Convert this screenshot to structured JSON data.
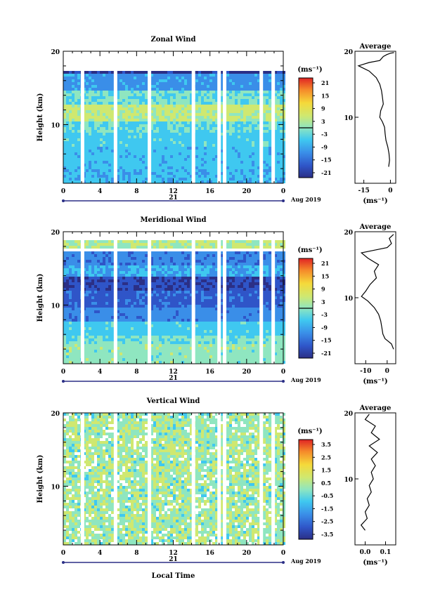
{
  "chart_data": [
    {
      "type": "heatmap",
      "title": "Zonal Wind",
      "ylabel": "Height (km)",
      "xlabel": "",
      "ylim": [
        2,
        20
      ],
      "xlim": [
        0,
        24
      ],
      "y_ticks": [
        "10",
        "20"
      ],
      "x_ticks": [
        "0",
        "4",
        "8",
        "12",
        "16",
        "20",
        "0"
      ],
      "date_label": "21",
      "date_suffix": "Aug 2019",
      "colorbar": {
        "unit": "(ms⁻¹)",
        "ticks": [
          "21",
          "15",
          "9",
          "3",
          "-3",
          "-9",
          "-15",
          "-21"
        ],
        "min": -24,
        "max": 24,
        "zero_line": true
      },
      "average": {
        "title": "Average",
        "xlabel": "(ms⁻¹)",
        "x_ticks": [
          "-15",
          "0"
        ],
        "y_ticks": [
          "10",
          "20"
        ],
        "xlim": [
          -20,
          3
        ],
        "profile": [
          [
            -1,
            2.5
          ],
          [
            -0.5,
            3.5
          ],
          [
            -0.8,
            4.5
          ],
          [
            -1.5,
            5.5
          ],
          [
            -2.5,
            6.5
          ],
          [
            -3,
            7.5
          ],
          [
            -3.3,
            8.5
          ],
          [
            -4.5,
            9.3
          ],
          [
            -6,
            10
          ],
          [
            -5.5,
            11
          ],
          [
            -4,
            12
          ],
          [
            -4.5,
            13
          ],
          [
            -5,
            14
          ],
          [
            -6,
            15
          ],
          [
            -8,
            16
          ],
          [
            -12,
            17
          ],
          [
            -18,
            17.8
          ],
          [
            -12,
            18.3
          ],
          [
            -6,
            18.6
          ],
          [
            -4,
            19.2
          ],
          [
            -2,
            19.5
          ],
          [
            0,
            19.7
          ],
          [
            2,
            19.8
          ]
        ]
      },
      "gap_hours": [
        2.1,
        5.7,
        9.4,
        14.2,
        17.0,
        17.6,
        21.6,
        22.9
      ],
      "layers": [
        {
          "y0": 2,
          "y1": 4,
          "value": -7
        },
        {
          "y0": 4,
          "y1": 7,
          "value": -6
        },
        {
          "y0": 7,
          "y1": 9,
          "value": -5
        },
        {
          "y0": 9,
          "y1": 10.5,
          "value": -3
        },
        {
          "y0": 10.5,
          "y1": 12,
          "value": 3
        },
        {
          "y0": 12,
          "y1": 13,
          "value": 5
        },
        {
          "y0": 13,
          "y1": 15,
          "value": -2
        },
        {
          "y0": 15,
          "y1": 17,
          "value": -10
        },
        {
          "y0": 17,
          "y1": 17.6,
          "value": -20
        }
      ]
    },
    {
      "type": "heatmap",
      "title": "Meridional Wind",
      "ylabel": "Height (km)",
      "xlabel": "",
      "ylim": [
        2,
        20
      ],
      "xlim": [
        0,
        24
      ],
      "y_ticks": [
        "10",
        "20"
      ],
      "x_ticks": [
        "0",
        "4",
        "8",
        "12",
        "16",
        "20",
        "0"
      ],
      "date_label": "21",
      "date_suffix": "Aug 2019",
      "colorbar": {
        "unit": "(ms⁻¹)",
        "ticks": [
          "21",
          "15",
          "9",
          "3",
          "-3",
          "-9",
          "-15",
          "-21"
        ],
        "min": -24,
        "max": 24,
        "zero_line": true
      },
      "average": {
        "title": "Average",
        "xlabel": "(ms⁻¹)",
        "x_ticks": [
          "-10",
          "0"
        ],
        "y_ticks": [
          "10",
          "20"
        ],
        "xlim": [
          -15,
          4
        ],
        "profile": [
          [
            3,
            2.2
          ],
          [
            2,
            3
          ],
          [
            -1,
            3.8
          ],
          [
            -2,
            4.5
          ],
          [
            -2.5,
            5.5
          ],
          [
            -3,
            6.5
          ],
          [
            -4,
            7.5
          ],
          [
            -6,
            8.5
          ],
          [
            -9,
            9.5
          ],
          [
            -12,
            10.2
          ],
          [
            -10,
            11
          ],
          [
            -8,
            12
          ],
          [
            -5,
            13
          ],
          [
            -6,
            14
          ],
          [
            -4,
            15
          ],
          [
            -9,
            16
          ],
          [
            -12,
            16.8
          ],
          [
            -6,
            17.2
          ],
          [
            0,
            17.6
          ],
          [
            2,
            18.2
          ],
          [
            1,
            19
          ],
          [
            3,
            19.6
          ]
        ]
      },
      "gap_hours": [
        2.1,
        5.7,
        9.4,
        14.2,
        17.0,
        17.6,
        21.6,
        22.9
      ],
      "layers": [
        {
          "y0": 2,
          "y1": 4,
          "value": 0
        },
        {
          "y0": 4,
          "y1": 5,
          "value": 1
        },
        {
          "y0": 5,
          "y1": 6,
          "value": -2
        },
        {
          "y0": 6,
          "y1": 8,
          "value": -5
        },
        {
          "y0": 8,
          "y1": 10,
          "value": -11
        },
        {
          "y0": 10,
          "y1": 12,
          "value": -15
        },
        {
          "y0": 12,
          "y1": 14,
          "value": -18
        },
        {
          "y0": 14,
          "y1": 15.5,
          "value": -8
        },
        {
          "y0": 15.5,
          "y1": 17.5,
          "value": -12
        },
        {
          "y0": 18,
          "y1": 19,
          "value": 3
        }
      ]
    },
    {
      "type": "heatmap",
      "title": "Vertical Wind",
      "ylabel": "Height (km)",
      "xlabel": "Local Time",
      "ylim": [
        2,
        20
      ],
      "xlim": [
        0,
        24
      ],
      "y_ticks": [
        "10",
        "20"
      ],
      "x_ticks": [
        "0",
        "4",
        "8",
        "12",
        "16",
        "20",
        "0"
      ],
      "date_label": "21",
      "date_suffix": "Aug 2019",
      "colorbar": {
        "unit": "(ms⁻¹)",
        "ticks": [
          "3.5",
          "2.5",
          "1.5",
          "0.5",
          "-0.5",
          "-1.5",
          "-2.5",
          "-3.5"
        ],
        "min": -4,
        "max": 4,
        "zero_line": false
      },
      "average": {
        "title": "Average",
        "xlabel": "(ms⁻¹)",
        "x_ticks": [
          "0.0",
          "0.1"
        ],
        "y_ticks": [
          "10",
          "20"
        ],
        "xlim": [
          -0.05,
          0.15
        ],
        "profile": [
          [
            0.0,
            2.2
          ],
          [
            -0.02,
            3
          ],
          [
            0.01,
            4
          ],
          [
            0.0,
            5
          ],
          [
            0.02,
            6
          ],
          [
            0.01,
            7
          ],
          [
            0.03,
            8
          ],
          [
            0.02,
            9
          ],
          [
            0.04,
            10
          ],
          [
            0.03,
            11
          ],
          [
            0.05,
            12
          ],
          [
            0.03,
            13
          ],
          [
            0.06,
            14
          ],
          [
            0.02,
            15
          ],
          [
            0.07,
            16
          ],
          [
            0.03,
            17
          ],
          [
            0.05,
            18
          ],
          [
            0.0,
            19
          ],
          [
            0.02,
            19.8
          ]
        ]
      },
      "gap_hours": [
        2.1,
        5.7,
        9.4,
        14.2,
        17.0,
        17.6,
        21.6,
        22.9
      ],
      "layers": [
        {
          "y0": 2,
          "y1": 20,
          "value": 0.3
        }
      ]
    }
  ]
}
